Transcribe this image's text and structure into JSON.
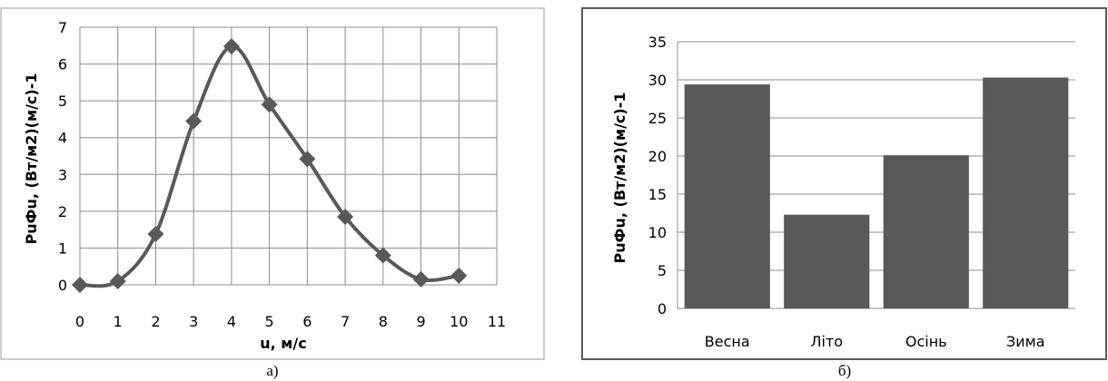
{
  "chart_data": [
    {
      "type": "line",
      "panel_label": "а)",
      "xlabel": "u, м/с",
      "ylabel": "РuФu, (Вт/м2)(м/с)-1",
      "x": [
        0,
        1,
        2,
        3,
        4,
        5,
        6,
        7,
        8,
        9,
        10
      ],
      "y": [
        0,
        0.1,
        1.38,
        4.45,
        6.48,
        4.9,
        3.42,
        1.85,
        0.8,
        0.15,
        0.25
      ],
      "xlim": [
        0,
        11
      ],
      "ylim": [
        0,
        7
      ],
      "x_ticks": [
        "0",
        "1",
        "2",
        "3",
        "4",
        "5",
        "6",
        "7",
        "8",
        "9",
        "10",
        "11"
      ],
      "y_ticks": [
        "0",
        "1",
        "2",
        "3",
        "4",
        "5",
        "6",
        "7"
      ],
      "grid": true,
      "marker": "diamond",
      "smooth": true,
      "color": "#595959"
    },
    {
      "type": "bar",
      "panel_label": "б)",
      "ylabel": "РuФu, (Вт/м2)(м/с)-1",
      "categories": [
        "Весна",
        "Літо",
        "Осінь",
        "Зима"
      ],
      "values": [
        29.4,
        12.3,
        20.1,
        30.3
      ],
      "ylim": [
        0,
        35
      ],
      "y_ticks": [
        "0",
        "5",
        "10",
        "15",
        "20",
        "25",
        "30",
        "35"
      ],
      "grid": "horizontal",
      "color": "#595959"
    }
  ]
}
